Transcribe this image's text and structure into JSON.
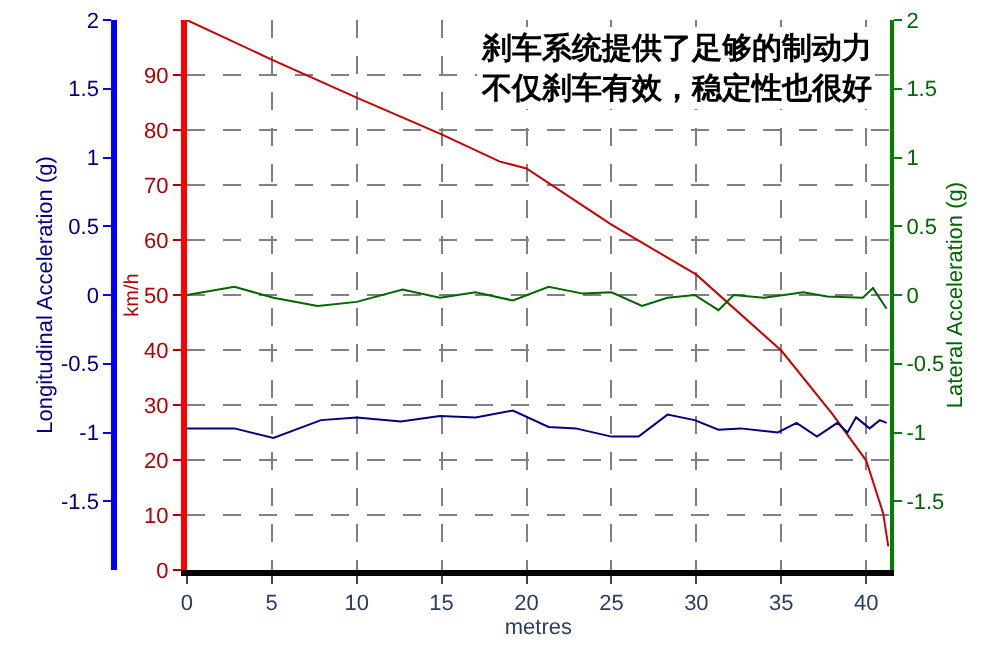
{
  "chart_data": {
    "type": "line",
    "xlabel": "metres",
    "ylabel": "Longitudinal Acceleration (g)",
    "y2label": "Lateral Acceleration (g)",
    "y3label": "km/h",
    "annotations": [
      "刹车系统提供了足够的制动力",
      "不仅刹车有效，稳定性也很好"
    ],
    "xlim": [
      0,
      41.4
    ],
    "xticks": [
      0,
      5,
      10,
      15,
      20,
      25,
      30,
      35,
      40
    ],
    "ylim": [
      -2,
      2
    ],
    "yticks": [
      -1.5,
      -1,
      -0.5,
      0,
      0.5,
      1,
      1.5,
      2
    ],
    "y2lim": [
      -2,
      2
    ],
    "y2ticks": [
      -1.5,
      -1,
      -0.5,
      0,
      0.5,
      1,
      1.5,
      2
    ],
    "y3lim": [
      0,
      100
    ],
    "y3ticks": [
      0,
      10,
      20,
      30,
      40,
      50,
      60,
      70,
      80,
      90
    ],
    "grid": true,
    "legend": false,
    "line_style": "solid",
    "marker": "none",
    "series": [
      {
        "axis": "y3",
        "color": "#cc0000",
        "x": [
          0,
          5,
          10,
          15,
          18.4,
          20,
          25,
          30,
          35,
          38,
          40,
          41,
          41.3
        ],
        "values": [
          100,
          92.8,
          85.9,
          79.2,
          74.3,
          73,
          62.8,
          53.7,
          39.9,
          28.4,
          19.9,
          10.3,
          4.3
        ]
      },
      {
        "axis": "y",
        "color": "#000080",
        "x": [
          0,
          2.8,
          5.1,
          7.9,
          10.0,
          12.6,
          14.9,
          17.0,
          19.2,
          21.3,
          22.9,
          25.0,
          26.6,
          28.3,
          29.9,
          31.3,
          32.6,
          34.8,
          35.9,
          37.1,
          38.3,
          38.9,
          39.4,
          40.2,
          40.8,
          41.2
        ],
        "values": [
          -0.97,
          -0.97,
          -1.04,
          -0.91,
          -0.89,
          -0.92,
          -0.88,
          -0.89,
          -0.84,
          -0.96,
          -0.97,
          -1.03,
          -1.03,
          -0.87,
          -0.91,
          -0.98,
          -0.97,
          -1.0,
          -0.93,
          -1.03,
          -0.93,
          -1.0,
          -0.89,
          -0.97,
          -0.91,
          -0.93
        ]
      },
      {
        "axis": "y2",
        "color": "#006600",
        "x": [
          0,
          2.8,
          5.1,
          7.7,
          10.0,
          12.7,
          14.9,
          17.0,
          19.2,
          21.3,
          23.3,
          25.0,
          26.8,
          28.3,
          29.9,
          31.3,
          32.2,
          34.0,
          36.3,
          37.7,
          39.8,
          40.4,
          41.2
        ],
        "values": [
          0.0,
          0.06,
          -0.02,
          -0.08,
          -0.05,
          0.04,
          -0.02,
          0.02,
          -0.04,
          0.06,
          0.01,
          0.02,
          -0.08,
          -0.02,
          0.0,
          -0.11,
          0.0,
          -0.02,
          0.02,
          -0.01,
          -0.02,
          0.05,
          -0.1
        ]
      }
    ]
  }
}
